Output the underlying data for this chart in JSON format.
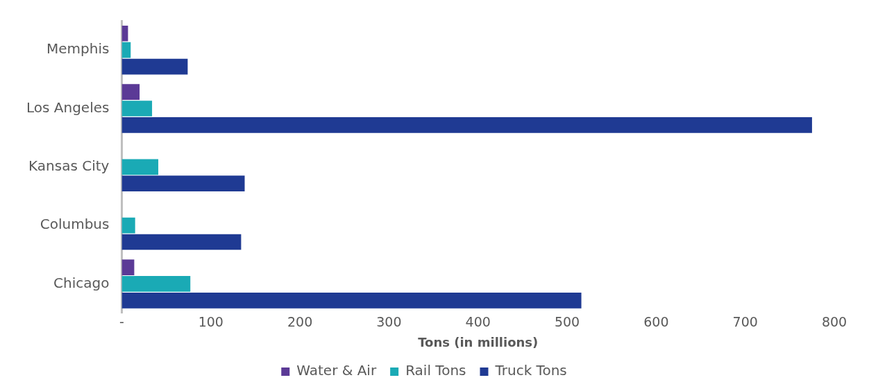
{
  "chart_data": {
    "type": "bar",
    "orientation": "horizontal",
    "xlabel": "Tons (in millions)",
    "categories": [
      "Memphis",
      "Los Angeles",
      "Kansas City",
      "Columbus",
      "Chicago"
    ],
    "series": [
      {
        "name": "Water & Air",
        "color": "#5b3a96",
        "values": [
          7,
          20,
          0,
          0,
          14
        ]
      },
      {
        "name": "Rail Tons",
        "color": "#1aaab5",
        "values": [
          10,
          34,
          41,
          15,
          77
        ]
      },
      {
        "name": "Truck Tons",
        "color": "#1f3a93",
        "values": [
          74,
          775,
          138,
          134,
          516
        ]
      }
    ],
    "xlim": [
      0,
      800
    ],
    "xticks": [
      {
        "value": 0,
        "label": "-"
      },
      100,
      200,
      300,
      400,
      500,
      600,
      700,
      800
    ],
    "grid": false,
    "legend": "bottom"
  }
}
